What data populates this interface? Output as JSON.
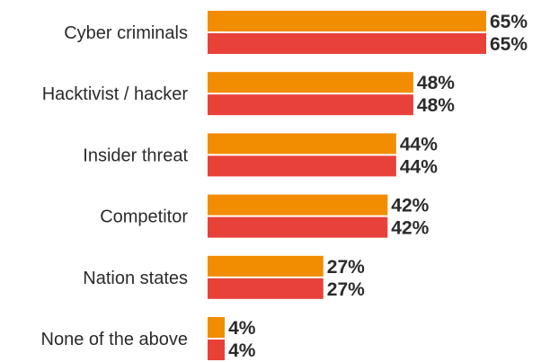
{
  "chart_data": {
    "type": "bar",
    "orientation": "horizontal",
    "categories": [
      "Cyber criminals",
      "Hacktivist / hacker",
      "Insider threat",
      "Competitor",
      "Nation states",
      "None of the above"
    ],
    "series": [
      {
        "values": [
          65,
          48,
          44,
          42,
          27,
          4
        ],
        "labels": [
          "65%",
          "48%",
          "44%",
          "42%",
          "27%",
          "4%"
        ],
        "color": "#f28c00"
      },
      {
        "values": [
          65,
          48,
          44,
          42,
          27,
          4
        ],
        "labels": [
          "65%",
          "48%",
          "44%",
          "42%",
          "27%",
          "4%"
        ],
        "color": "#e8413a"
      }
    ],
    "value_unit": "%",
    "xlim": [
      0,
      65
    ],
    "grid": false,
    "legend": "none"
  }
}
